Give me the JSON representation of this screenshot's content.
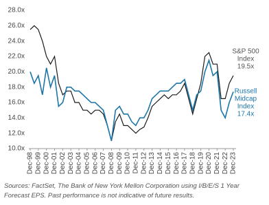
{
  "chart_data": {
    "type": "line",
    "categories": [
      "Dec-98",
      null,
      "Dec-99",
      null,
      "Dec-00",
      null,
      "Dec-01",
      null,
      "Dec-02",
      null,
      "Dec-03",
      null,
      "Dec-04",
      null,
      "Dec-05",
      null,
      "Dec-06",
      null,
      "Dec-07",
      null,
      "Dec-08",
      null,
      "Dec-09",
      null,
      "Dec-10",
      null,
      "Dec-11",
      null,
      "Dec-12",
      null,
      "Dec-13",
      null,
      "Dec-14",
      null,
      "Dec-15",
      null,
      "Dec-16",
      null,
      "Dec-17",
      null,
      "Dec-18",
      null,
      "Dec-19",
      null,
      "Dec-20",
      null,
      "Dec-21",
      null,
      "Dec-22",
      null,
      "Dec-23"
    ],
    "series": [
      {
        "name": "S&P 500 Index",
        "color": "#1a1a1a",
        "values": [
          25.5,
          26,
          25.5,
          24,
          22,
          21,
          22,
          18.5,
          17,
          17.5,
          17.5,
          16,
          16,
          15,
          15,
          14.5,
          15,
          15,
          14.5,
          13,
          11,
          13.5,
          14.5,
          13,
          13,
          12.5,
          12,
          12.5,
          12.8,
          14,
          15.5,
          16,
          16.5,
          17,
          16.5,
          17,
          17,
          17.5,
          18.5,
          16.5,
          14.5,
          16.5,
          18.5,
          22,
          22.5,
          21,
          21,
          16.5,
          16.5,
          18.5,
          19.5
        ]
      },
      {
        "name": "Russell Midcap Index",
        "color": "#1b75a8",
        "values": [
          20,
          18.5,
          19.5,
          17,
          20.5,
          18,
          19.5,
          15.5,
          16,
          18,
          18,
          17.5,
          17.5,
          17,
          16.5,
          16,
          16,
          15.5,
          15,
          13,
          11,
          15,
          15.5,
          14.5,
          14.5,
          13.5,
          13,
          14,
          14,
          15,
          16.5,
          17,
          17.5,
          17.5,
          17.5,
          18,
          18.5,
          18.5,
          19,
          17,
          15,
          17,
          17.5,
          20,
          21.5,
          19.5,
          20,
          15,
          14,
          16,
          17.4
        ]
      }
    ],
    "annotations": [
      {
        "lines": [
          "S&P 500",
          "Index",
          "19.5x"
        ],
        "color": "#555555"
      },
      {
        "lines": [
          "Russell",
          "Midcap",
          "Index",
          "17.4x"
        ],
        "color": "#1b75a8"
      }
    ],
    "ylim": [
      10,
      28
    ],
    "yticks": [
      {
        "value": 10,
        "label": "10.0x"
      },
      {
        "value": 12,
        "label": "12.0x"
      },
      {
        "value": 14,
        "label": "14.0x"
      },
      {
        "value": 16,
        "label": "16.0x"
      },
      {
        "value": 18,
        "label": "18.0x"
      },
      {
        "value": 20,
        "label": "20.0x"
      },
      {
        "value": 22,
        "label": "22.0x"
      },
      {
        "value": 24,
        "label": "24.0x"
      },
      {
        "value": 26,
        "label": "26.0x"
      },
      {
        "value": 28,
        "label": "28.0x"
      }
    ],
    "grid": false,
    "footnote": "Sources: FactSet, The Bank of New York Mellon Corporation using I/B/E/S 1 Year Forecast EPS. Past performance is not indicative of future results."
  }
}
